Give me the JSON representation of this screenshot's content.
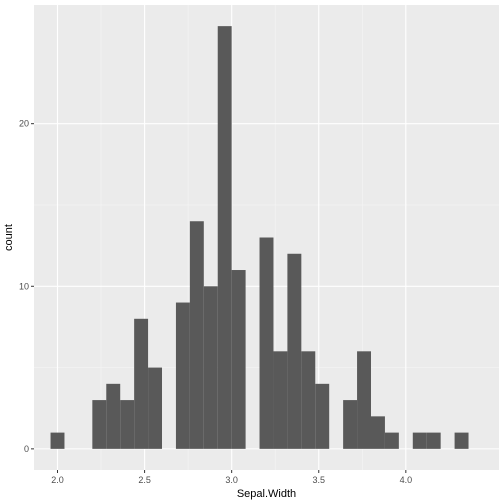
{
  "chart_data": {
    "type": "bar",
    "xlabel": "Sepal.Width",
    "ylabel": "count",
    "xlim": [
      1.865,
      4.535
    ],
    "ylim": [
      -1.3,
      27.3
    ],
    "binwidth": 0.08,
    "x_ticks": [
      2.0,
      2.5,
      3.0,
      3.5,
      4.0
    ],
    "x_tick_labels": [
      "2.0",
      "2.5",
      "3.0",
      "3.5",
      "4.0"
    ],
    "y_ticks": [
      0,
      10,
      20
    ],
    "y_tick_labels": [
      "0",
      "10",
      "20"
    ],
    "bins": [
      {
        "x0": 1.96,
        "x1": 2.04,
        "count": 1
      },
      {
        "x0": 2.04,
        "x1": 2.12,
        "count": 0
      },
      {
        "x0": 2.12,
        "x1": 2.2,
        "count": 0
      },
      {
        "x0": 2.2,
        "x1": 2.28,
        "count": 3
      },
      {
        "x0": 2.28,
        "x1": 2.36,
        "count": 4
      },
      {
        "x0": 2.36,
        "x1": 2.44,
        "count": 3
      },
      {
        "x0": 2.44,
        "x1": 2.52,
        "count": 8
      },
      {
        "x0": 2.52,
        "x1": 2.6,
        "count": 5
      },
      {
        "x0": 2.6,
        "x1": 2.68,
        "count": 0
      },
      {
        "x0": 2.68,
        "x1": 2.76,
        "count": 9
      },
      {
        "x0": 2.76,
        "x1": 2.84,
        "count": 14
      },
      {
        "x0": 2.84,
        "x1": 2.92,
        "count": 10
      },
      {
        "x0": 2.92,
        "x1": 3.0,
        "count": 26
      },
      {
        "x0": 3.0,
        "x1": 3.08,
        "count": 11
      },
      {
        "x0": 3.08,
        "x1": 3.16,
        "count": 0
      },
      {
        "x0": 3.16,
        "x1": 3.24,
        "count": 13
      },
      {
        "x0": 3.24,
        "x1": 3.32,
        "count": 6
      },
      {
        "x0": 3.32,
        "x1": 3.4,
        "count": 12
      },
      {
        "x0": 3.4,
        "x1": 3.48,
        "count": 6
      },
      {
        "x0": 3.48,
        "x1": 3.56,
        "count": 4
      },
      {
        "x0": 3.56,
        "x1": 3.64,
        "count": 0
      },
      {
        "x0": 3.64,
        "x1": 3.72,
        "count": 3
      },
      {
        "x0": 3.72,
        "x1": 3.8,
        "count": 6
      },
      {
        "x0": 3.8,
        "x1": 3.88,
        "count": 2
      },
      {
        "x0": 3.88,
        "x1": 3.96,
        "count": 1
      },
      {
        "x0": 3.96,
        "x1": 4.04,
        "count": 0
      },
      {
        "x0": 4.04,
        "x1": 4.12,
        "count": 1
      },
      {
        "x0": 4.12,
        "x1": 4.2,
        "count": 1
      },
      {
        "x0": 4.2,
        "x1": 4.28,
        "count": 0
      },
      {
        "x0": 4.28,
        "x1": 4.36,
        "count": 1
      }
    ],
    "grid": true,
    "colors": {
      "panel_background": "#ebebeb",
      "grid_major": "#ffffff",
      "grid_minor": "#f5f5f5",
      "bar_fill": "#595959",
      "tick_label": "#4d4d4d",
      "tick_mark": "#333333"
    }
  }
}
